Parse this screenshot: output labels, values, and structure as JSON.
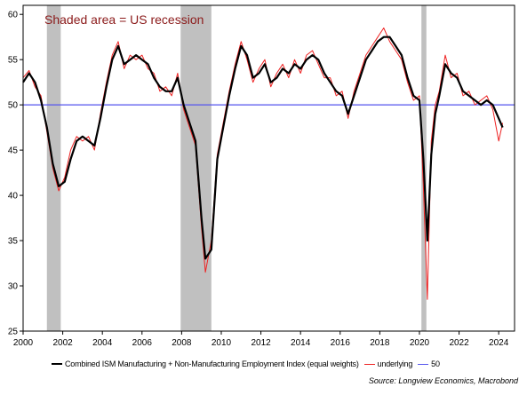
{
  "chart_data": {
    "type": "line",
    "annotation": "Shaded area = US recession",
    "source": "Source: Longview Economics, Macrobond",
    "xlim": [
      2000,
      2024.8
    ],
    "ylim": [
      25,
      61
    ],
    "x_ticks": [
      2000,
      2002,
      2004,
      2006,
      2008,
      2010,
      2012,
      2014,
      2016,
      2018,
      2020,
      2022,
      2024
    ],
    "y_ticks": [
      25,
      30,
      35,
      40,
      45,
      50,
      55,
      60
    ],
    "grid": false,
    "legend_position": "bottom",
    "recessions": [
      [
        2001.2,
        2001.9
      ],
      [
        2007.95,
        2009.5
      ],
      [
        2020.1,
        2020.35
      ]
    ],
    "reference_line": {
      "name": "50",
      "value": 50,
      "color": "#5555ee"
    },
    "colors": {
      "combined": "#000000",
      "underlying": "#ee2222",
      "reference": "#5555ee",
      "recession": "#c0c0c0",
      "annotation": "#8b1a1a"
    },
    "series": [
      {
        "name": "Combined ISM Manufacturing + Non-Manufacturing Employment Index (equal weights)",
        "x": [
          2000.0,
          2000.3,
          2000.6,
          2000.9,
          2001.2,
          2001.5,
          2001.8,
          2002.1,
          2002.4,
          2002.7,
          2003.0,
          2003.3,
          2003.6,
          2003.9,
          2004.2,
          2004.5,
          2004.8,
          2005.1,
          2005.4,
          2005.7,
          2006.0,
          2006.3,
          2006.6,
          2006.9,
          2007.2,
          2007.5,
          2007.8,
          2008.1,
          2008.4,
          2008.7,
          2009.0,
          2009.2,
          2009.5,
          2009.8,
          2010.1,
          2010.4,
          2010.7,
          2011.0,
          2011.3,
          2011.6,
          2011.9,
          2012.2,
          2012.5,
          2012.8,
          2013.1,
          2013.4,
          2013.7,
          2014.0,
          2014.3,
          2014.6,
          2014.9,
          2015.2,
          2015.5,
          2015.8,
          2016.1,
          2016.4,
          2016.7,
          2017.0,
          2017.3,
          2017.6,
          2017.9,
          2018.2,
          2018.5,
          2018.8,
          2019.1,
          2019.4,
          2019.7,
          2020.0,
          2020.2,
          2020.4,
          2020.6,
          2020.8,
          2021.0,
          2021.3,
          2021.6,
          2021.9,
          2022.2,
          2022.5,
          2022.8,
          2023.1,
          2023.4,
          2023.7,
          2024.0,
          2024.2
        ],
        "y": [
          52.5,
          53.5,
          52.5,
          50.5,
          47.5,
          43.5,
          41.0,
          41.5,
          44.0,
          46.0,
          46.5,
          46.0,
          45.5,
          48.5,
          52.0,
          55.0,
          56.5,
          54.5,
          55.0,
          55.5,
          55.0,
          54.5,
          53.0,
          52.0,
          51.5,
          51.5,
          53.0,
          50.0,
          48.0,
          46.0,
          37.5,
          33.0,
          34.0,
          44.0,
          47.5,
          51.0,
          54.0,
          56.5,
          55.5,
          53.0,
          53.5,
          54.5,
          52.5,
          53.0,
          54.0,
          53.5,
          54.5,
          54.0,
          55.0,
          55.5,
          55.0,
          53.5,
          52.5,
          51.5,
          51.0,
          49.0,
          51.0,
          53.0,
          55.0,
          56.0,
          57.0,
          57.5,
          57.5,
          56.5,
          55.5,
          53.0,
          51.0,
          50.5,
          44.0,
          35.0,
          44.5,
          49.0,
          51.0,
          54.5,
          53.5,
          53.0,
          51.5,
          51.0,
          50.5,
          50.0,
          50.5,
          50.0,
          48.5,
          47.5
        ]
      },
      {
        "name": "underlying",
        "x": [
          2000.0,
          2000.3,
          2000.6,
          2000.9,
          2001.2,
          2001.5,
          2001.8,
          2002.1,
          2002.4,
          2002.7,
          2003.0,
          2003.3,
          2003.6,
          2003.9,
          2004.2,
          2004.5,
          2004.8,
          2005.1,
          2005.4,
          2005.7,
          2006.0,
          2006.3,
          2006.6,
          2006.9,
          2007.2,
          2007.5,
          2007.8,
          2008.1,
          2008.4,
          2008.7,
          2009.0,
          2009.2,
          2009.5,
          2009.8,
          2010.1,
          2010.4,
          2010.7,
          2011.0,
          2011.3,
          2011.6,
          2011.9,
          2012.2,
          2012.5,
          2012.8,
          2013.1,
          2013.4,
          2013.7,
          2014.0,
          2014.3,
          2014.6,
          2014.9,
          2015.2,
          2015.5,
          2015.8,
          2016.1,
          2016.4,
          2016.7,
          2017.0,
          2017.3,
          2017.6,
          2017.9,
          2018.2,
          2018.5,
          2018.8,
          2019.1,
          2019.4,
          2019.7,
          2020.0,
          2020.2,
          2020.4,
          2020.6,
          2020.8,
          2021.0,
          2021.3,
          2021.6,
          2021.9,
          2022.2,
          2022.5,
          2022.8,
          2023.1,
          2023.4,
          2023.7,
          2024.0,
          2024.2
        ],
        "y": [
          53.0,
          53.8,
          52.0,
          51.0,
          47.0,
          43.0,
          40.5,
          42.0,
          45.0,
          46.5,
          46.0,
          46.5,
          45.0,
          49.0,
          52.5,
          55.5,
          57.0,
          54.0,
          55.5,
          55.0,
          55.5,
          54.0,
          53.5,
          51.5,
          52.0,
          51.0,
          53.5,
          49.5,
          47.5,
          45.5,
          36.5,
          31.5,
          35.0,
          44.5,
          48.0,
          51.5,
          54.5,
          57.0,
          55.0,
          52.5,
          54.0,
          55.0,
          52.0,
          53.5,
          54.5,
          53.0,
          55.0,
          53.5,
          55.5,
          56.0,
          54.5,
          53.0,
          53.0,
          51.0,
          51.5,
          48.5,
          51.5,
          53.5,
          55.5,
          56.5,
          57.5,
          58.5,
          57.0,
          56.0,
          55.0,
          52.5,
          50.5,
          51.0,
          41.0,
          28.5,
          46.0,
          50.0,
          51.5,
          55.5,
          53.0,
          53.5,
          51.0,
          51.5,
          50.0,
          50.5,
          51.0,
          49.5,
          46.0,
          48.0
        ]
      }
    ]
  },
  "legend": {
    "combined_label": "Combined ISM Manufacturing + Non-Manufacturing Employment Index (equal weights)",
    "underlying_label": "underlying",
    "reference_label": "50"
  }
}
